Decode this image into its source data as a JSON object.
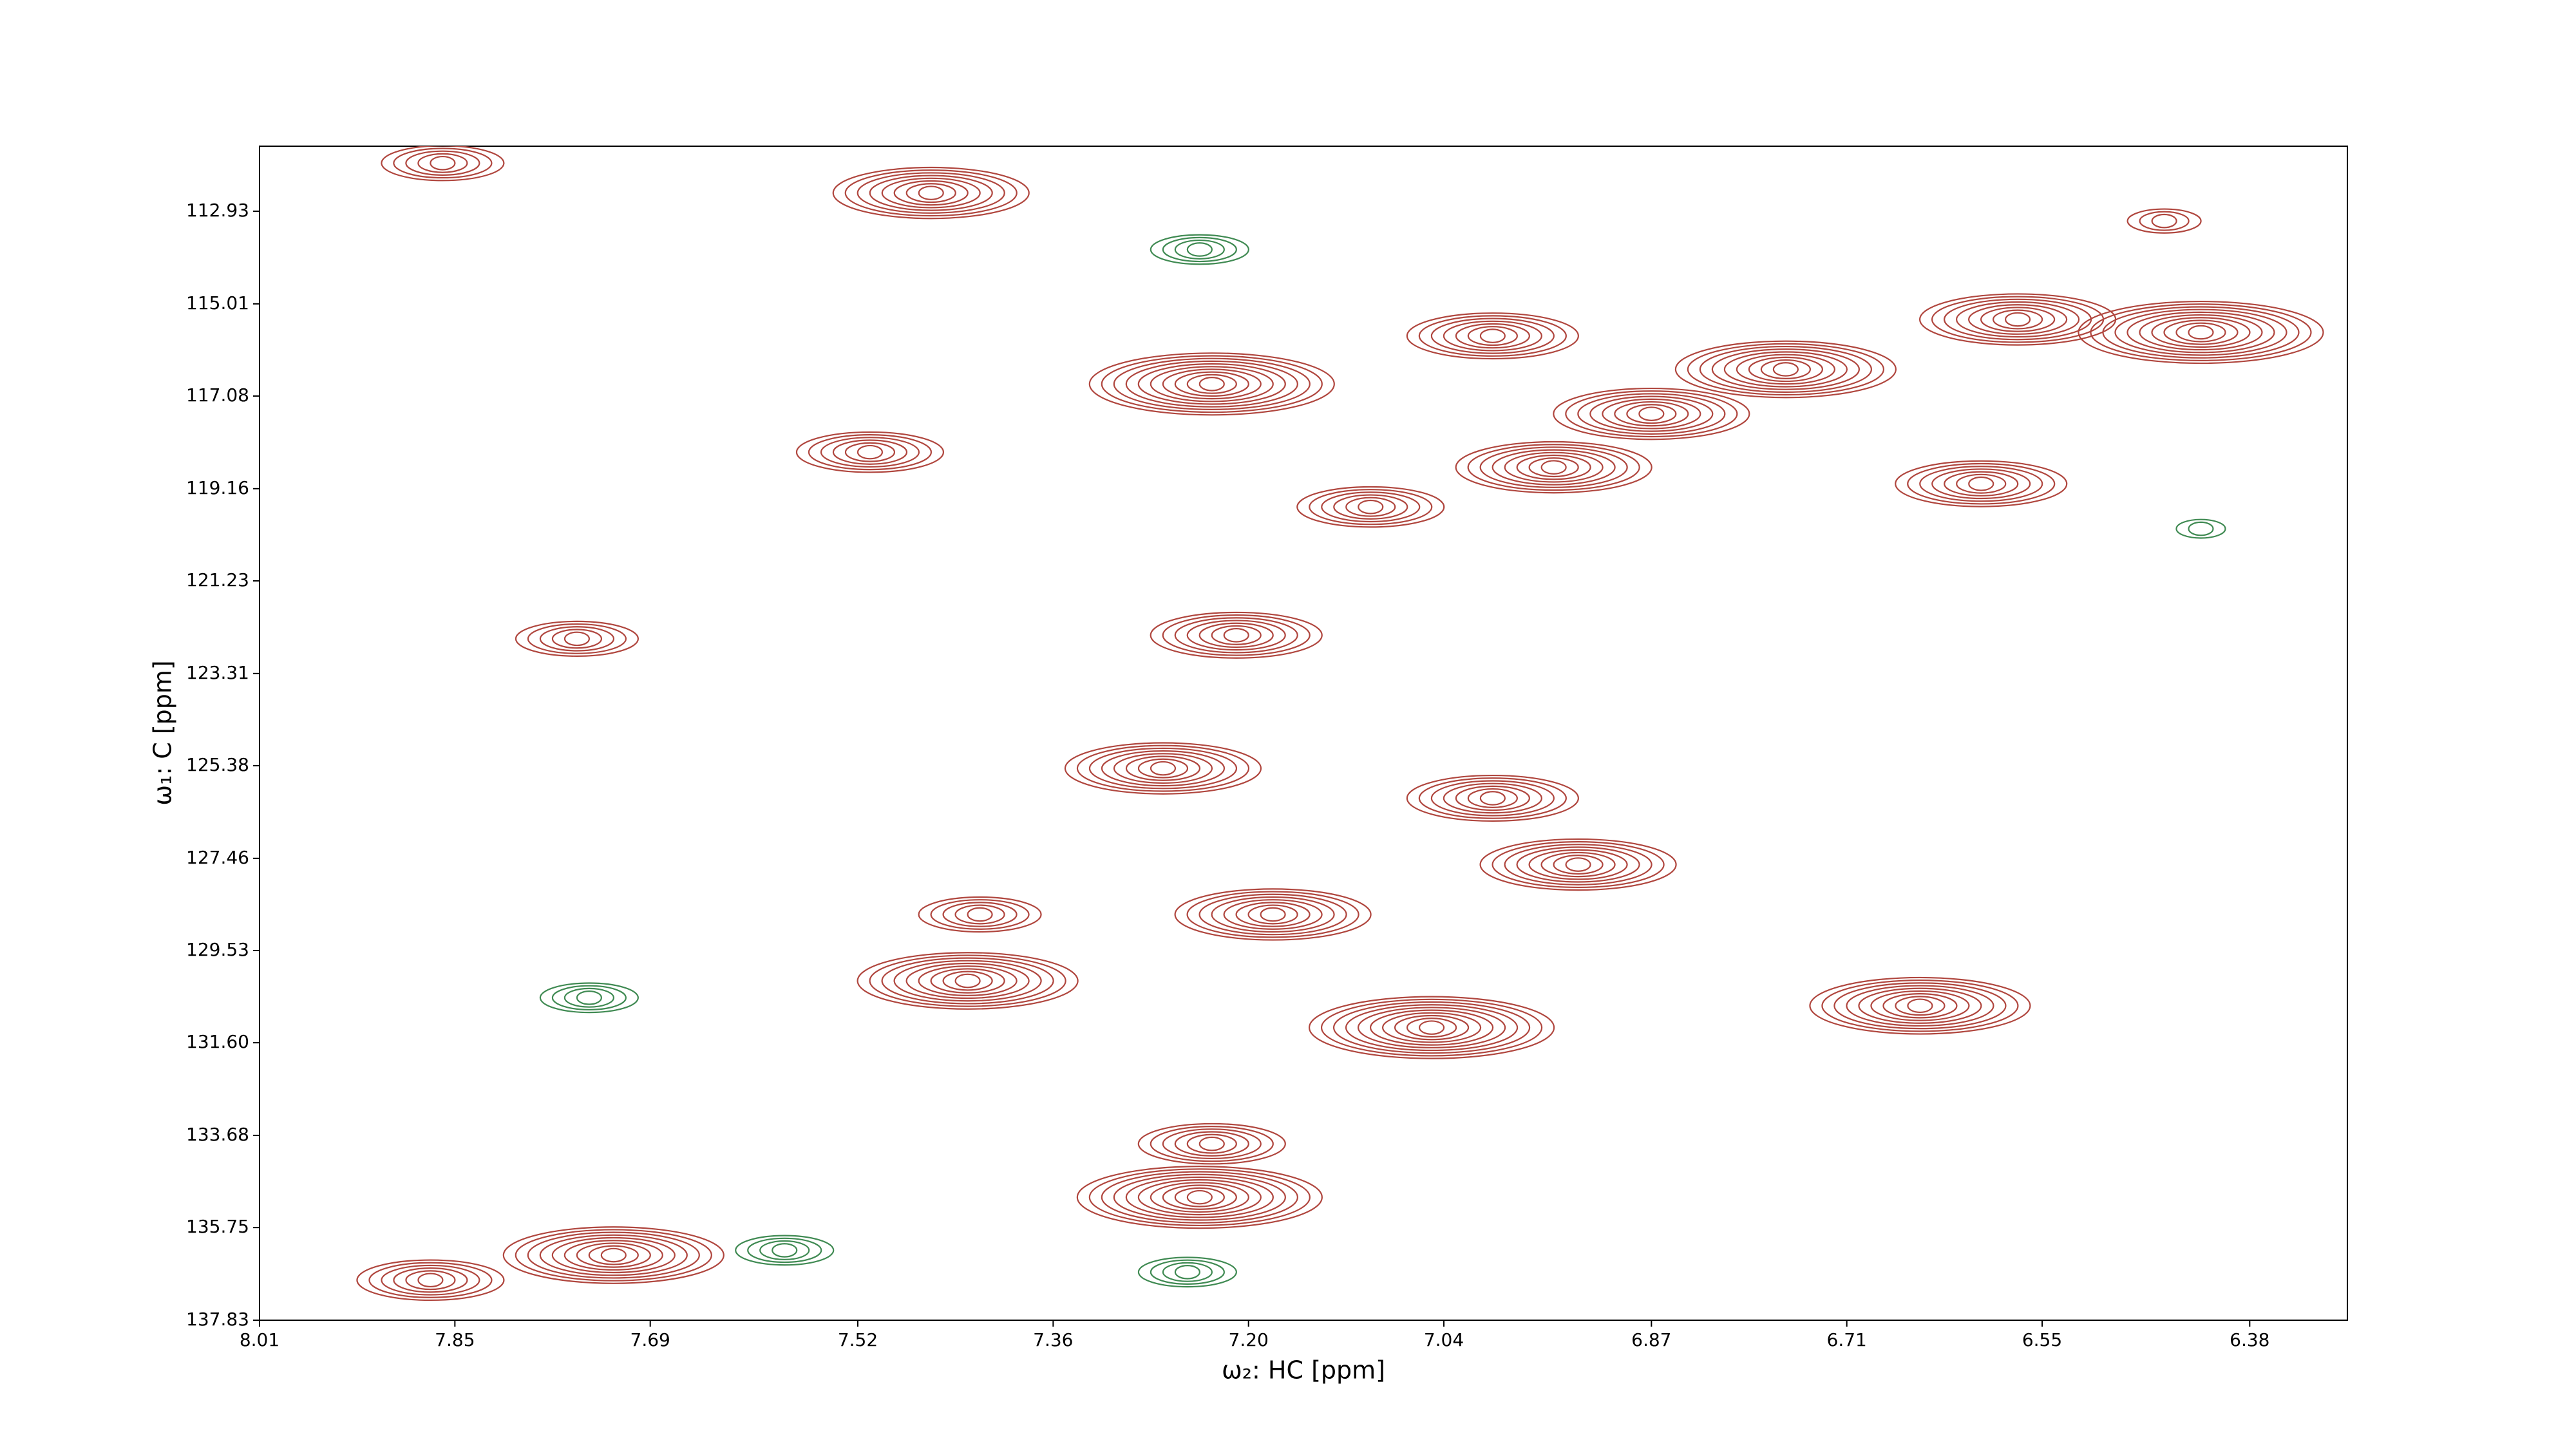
{
  "chart_data": {
    "type": "contour",
    "xlabel": "ω₂: HC [ppm]",
    "ylabel": "ω₁: C [ppm]",
    "xlim": [
      8.01,
      6.3
    ],
    "ylim": [
      137.83,
      111.47
    ],
    "xticks": [
      8.01,
      7.85,
      7.69,
      7.52,
      7.36,
      {
        "value": 7.2,
        "label": "7.20"
      },
      7.04,
      6.87,
      6.71,
      6.55,
      6.38
    ],
    "yticks": [
      112.93,
      115.01,
      117.08,
      119.16,
      121.23,
      123.31,
      125.38,
      127.46,
      129.53,
      {
        "value": 131.6,
        "label": "131.60"
      },
      133.68,
      135.75,
      137.83
    ],
    "series": [
      {
        "color": "#b0463e",
        "x": [
          7.46,
          7.23,
          7.0,
          6.87,
          6.95,
          6.76,
          6.57,
          6.42,
          6.6,
          7.51,
          7.1,
          7.21,
          7.75,
          7.27,
          7.0,
          6.93,
          7.18,
          7.42,
          7.43,
          7.05,
          6.65,
          7.23,
          7.24,
          7.72,
          7.87,
          7.86,
          6.45
        ],
        "y": [
          112.52,
          116.81,
          115.73,
          117.48,
          118.68,
          116.48,
          115.36,
          115.65,
          119.05,
          118.34,
          119.57,
          122.45,
          122.53,
          125.44,
          126.11,
          127.6,
          128.72,
          128.72,
          130.21,
          131.26,
          130.77,
          133.87,
          135.07,
          136.37,
          136.93,
          111.85,
          113.15
        ],
        "values": [
          8,
          10,
          7,
          8,
          8,
          9,
          8,
          10,
          7,
          6,
          6,
          7,
          5,
          8,
          7,
          8,
          8,
          5,
          9,
          10,
          9,
          6,
          10,
          9,
          6,
          5,
          3
        ]
      },
      {
        "color": "#3f8a52",
        "x": [
          7.24,
          7.74,
          7.58,
          7.25,
          6.42
        ],
        "y": [
          113.79,
          130.59,
          136.26,
          136.75,
          120.06
        ],
        "values": [
          4,
          4,
          4,
          4,
          2
        ]
      }
    ]
  }
}
